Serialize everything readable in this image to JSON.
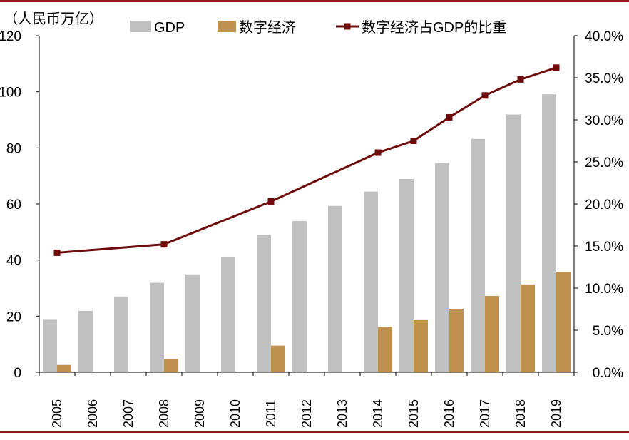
{
  "chart_data": {
    "type": "bar+line",
    "unit_label": "（人民币万亿）",
    "categories": [
      "2005",
      "2006",
      "2007",
      "2008",
      "2009",
      "2010",
      "2011",
      "2012",
      "2013",
      "2014",
      "2015",
      "2016",
      "2017",
      "2018",
      "2019"
    ],
    "series": [
      {
        "name": "GDP",
        "type": "bar",
        "axis": "left",
        "color": "#c0c0c0",
        "values": [
          18.7,
          21.9,
          27.0,
          31.9,
          34.9,
          41.2,
          48.8,
          53.9,
          59.3,
          64.4,
          68.9,
          74.6,
          83.2,
          91.9,
          99.1
        ]
      },
      {
        "name": "数字经济",
        "type": "bar",
        "axis": "left",
        "color": "#c0904f",
        "values": [
          2.6,
          null,
          null,
          4.8,
          null,
          null,
          9.5,
          null,
          null,
          16.2,
          18.6,
          22.6,
          27.2,
          31.3,
          35.8
        ]
      },
      {
        "name": "数字经济占GDP的比重",
        "type": "line",
        "axis": "right",
        "color": "#6e0b0b",
        "values": [
          14.2,
          null,
          null,
          15.2,
          null,
          null,
          20.3,
          null,
          null,
          26.1,
          27.5,
          30.3,
          32.9,
          34.8,
          36.2
        ]
      }
    ],
    "y_left": {
      "min": 0,
      "max": 120,
      "ticks": [
        0,
        20,
        40,
        60,
        80,
        100,
        120
      ],
      "tick_labels": [
        "0",
        "20",
        "40",
        "60",
        "80",
        "100",
        "120"
      ]
    },
    "y_right": {
      "min": 0,
      "max": 40,
      "ticks": [
        0,
        5,
        10,
        15,
        20,
        25,
        30,
        35,
        40
      ],
      "tick_labels": [
        "0.0%",
        "5.0%",
        "10.0%",
        "15.0%",
        "20.0%",
        "25.0%",
        "30.0%",
        "35.0%",
        "40.0%"
      ]
    },
    "legend_position": "top",
    "grid": false
  }
}
